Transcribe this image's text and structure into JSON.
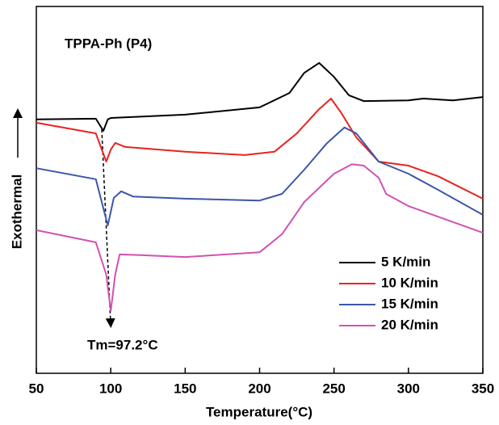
{
  "chart_data": {
    "type": "line",
    "title": "TPPA-Ph (P4)",
    "annotation": "Tm=97.2°C",
    "x_label": "Temperature(°C)",
    "y_label": "Exothermal",
    "xlim": [
      50,
      350
    ],
    "xticks": [
      50,
      100,
      150,
      200,
      250,
      300,
      350
    ],
    "ylim": [
      0,
      100
    ],
    "legend": "lower right",
    "series": [
      {
        "name": "5 K/min",
        "color": "#000000",
        "x": [
          50,
          90,
          95,
          98,
          100,
          150,
          200,
          220,
          230,
          240,
          250,
          260,
          270,
          300,
          310,
          330,
          350
        ],
        "values": [
          69.2,
          69.4,
          66.1,
          69.2,
          69.6,
          70.5,
          72.5,
          76.4,
          81.9,
          84.6,
          80.8,
          75.8,
          74.2,
          74.4,
          74.9,
          74.4,
          75.3
        ]
      },
      {
        "name": "10 K/min",
        "color": "#e8231f",
        "x": [
          50,
          90,
          97,
          100,
          103,
          110,
          150,
          190,
          210,
          225,
          240,
          248,
          255,
          265,
          280,
          300,
          320,
          350
        ],
        "values": [
          68.3,
          65.4,
          57.7,
          61.0,
          62.8,
          61.7,
          60.4,
          59.5,
          60.4,
          65.4,
          72.0,
          74.9,
          70.9,
          64.3,
          57.7,
          56.6,
          53.7,
          47.6
        ]
      },
      {
        "name": "15 K/min",
        "color": "#3c56a8",
        "x": [
          50,
          90,
          98,
          102,
          107,
          115,
          150,
          200,
          215,
          230,
          245,
          257,
          265,
          280,
          300,
          320,
          350
        ],
        "values": [
          55.9,
          52.9,
          40.3,
          47.8,
          49.6,
          48.2,
          47.6,
          47.1,
          48.9,
          55.5,
          62.6,
          67.0,
          65.4,
          57.7,
          54.4,
          50.0,
          43.2
        ]
      },
      {
        "name": "20 K/min",
        "color": "#d052b2",
        "x": [
          50,
          90,
          97,
          100,
          103,
          106,
          120,
          150,
          200,
          215,
          230,
          250,
          262,
          270,
          280,
          285,
          300,
          350
        ],
        "values": [
          39.0,
          35.7,
          26.9,
          17.0,
          26.9,
          32.4,
          32.2,
          31.7,
          33.0,
          37.9,
          46.7,
          54.4,
          57.0,
          56.6,
          53.3,
          48.9,
          45.6,
          38.3
        ]
      }
    ]
  }
}
